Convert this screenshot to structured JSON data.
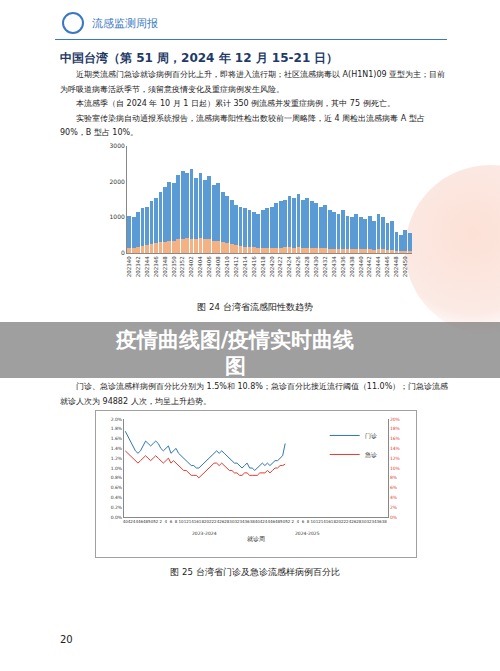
{
  "header": {
    "title": "流感监测周报"
  },
  "section_title": "中国台湾（第 51 周，2024 年 12 月 15-21 日）",
  "intro": [
    "近期类流感门急诊就诊病例百分比上升，即将进入流行期；社区流感病毒以 A(H1N1)09 亚型为主；目前为呼吸道病毒活跃季节，须留意疫情变化及重症病例发生风险。",
    "本流感季（自 2024 年 10 月 1 日起）累计 350 例流感并发重症病例，其中 75 例死亡。",
    "实验室传染病自动通报系统报告，流感病毒阳性检出数较前一周略降，近 4 周检出流感病毒 A 型占 90%，B 型占 10%。"
  ],
  "middle": "门诊、急诊流感样病例百分比分别为 1.5%和 10.8%；急诊百分比接近流行阈值（11.0%）；门急诊流感就诊人次为 94882 人次，均呈上升趋势。",
  "overlay": [
    "疫情曲线图/疫情实时曲线",
    "图"
  ],
  "page_number": 20,
  "chart_data": [
    {
      "type": "bar",
      "title": "图 24 台湾省流感阳性数趋势",
      "stacked": true,
      "grid": false,
      "categories": [
        "202340",
        null,
        "202342",
        null,
        "202344",
        null,
        "202346",
        null,
        "202348",
        null,
        "202350",
        null,
        "202352",
        null,
        "202402",
        null,
        "202404",
        null,
        "202406",
        null,
        "202408",
        null,
        "202410",
        null,
        "202412",
        null,
        "202414",
        null,
        "202416",
        null,
        "202418",
        null,
        "202420",
        null,
        "202422",
        null,
        "202424",
        null,
        "202426",
        null,
        "202428",
        null,
        "202430",
        null,
        "202432",
        null,
        "202434",
        null,
        "202436",
        null,
        "202438",
        null,
        "202440",
        null,
        "202442",
        null,
        "202444",
        null,
        "202446",
        null,
        "202448",
        null,
        "202450",
        null
      ],
      "series": [
        {
          "color": "#f4b183",
          "values": [
            150,
            150,
            180,
            200,
            220,
            250,
            280,
            300,
            320,
            350,
            330,
            380,
            400,
            420,
            380,
            400,
            420,
            380,
            400,
            350,
            330,
            300,
            270,
            250,
            220,
            200,
            180,
            170,
            160,
            150,
            150,
            140,
            140,
            150,
            150,
            160,
            160,
            150,
            160,
            150,
            150,
            140,
            140,
            130,
            130,
            120,
            120,
            110,
            120,
            110,
            100,
            110,
            100,
            100,
            110,
            90,
            110,
            100,
            90,
            90,
            70,
            60,
            70,
            60
          ]
        },
        {
          "color": "#5b9bd5",
          "values": [
            900,
            850,
            970,
            1050,
            1080,
            1200,
            1270,
            1400,
            1530,
            1650,
            1620,
            1820,
            1900,
            1830,
            1970,
            1700,
            1830,
            1670,
            1750,
            1550,
            1620,
            1400,
            1330,
            1250,
            1130,
            1100,
            1070,
            1030,
            990,
            950,
            1050,
            1110,
            1160,
            1250,
            1300,
            1340,
            1440,
            1400,
            1490,
            1350,
            1400,
            1310,
            1260,
            1170,
            1220,
            1080,
            1030,
            990,
            1080,
            940,
            900,
            990,
            900,
            850,
            940,
            810,
            990,
            900,
            760,
            810,
            530,
            440,
            580,
            490
          ]
        }
      ],
      "ylim": [
        0,
        3000
      ],
      "yticks": [
        0,
        1000,
        2000,
        3000
      ]
    },
    {
      "type": "line",
      "title": "图 25 台湾省门诊及急诊流感样病例百分比",
      "xlabel": "就诊周",
      "annotations": [
        "2023-2024",
        "2024-2025"
      ],
      "legend": "top right",
      "grid": false,
      "categories": [
        "40",
        null,
        "42",
        null,
        "44",
        null,
        "46",
        null,
        "48",
        null,
        "50",
        null,
        "52",
        null,
        "2",
        null,
        "4",
        null,
        "6",
        null,
        "8",
        null,
        "10",
        null,
        "12",
        null,
        "14",
        null,
        "16",
        null,
        "18",
        null,
        "20",
        null,
        "22",
        null,
        "24",
        null,
        "26",
        null,
        "28",
        null,
        "30",
        null,
        "32",
        null,
        "34",
        null,
        "36",
        null,
        "38",
        null,
        "40",
        null,
        "42",
        null,
        "44",
        null,
        "46",
        null,
        "48",
        null,
        "50",
        null,
        "52",
        null,
        "2",
        null,
        "4",
        null,
        "6",
        null,
        "8",
        null,
        "10",
        null,
        "12",
        null,
        "14",
        null,
        "16",
        null,
        "18",
        null,
        "20",
        null,
        "22",
        null,
        "24",
        null,
        "26",
        null,
        "28",
        null,
        "30",
        null,
        "32",
        null,
        "34",
        null,
        "36",
        null,
        "38",
        null
      ],
      "series": [
        {
          "name": "门诊",
          "color": "#2e75b6",
          "values": [
            1.75,
            1.65,
            1.55,
            1.45,
            1.35,
            1.3,
            1.35,
            1.45,
            1.55,
            1.5,
            1.45,
            1.5,
            1.55,
            1.5,
            1.4,
            1.35,
            1.4,
            1.45,
            1.3,
            1.35,
            1.4,
            1.3,
            1.25,
            1.2,
            1.15,
            1.1,
            1.05,
            1.05,
            1.0,
            1.0,
            1.05,
            1.1,
            1.15,
            1.2,
            1.25,
            1.3,
            1.35,
            1.3,
            1.35,
            1.3,
            1.25,
            1.2,
            1.15,
            1.1,
            1.1,
            1.05,
            1.0,
            1.05,
            1.1,
            1.0,
            1.0,
            0.95,
            1.0,
            1.05,
            1.1,
            1.05,
            1.1,
            1.05,
            1.1,
            1.15,
            1.15,
            1.2,
            1.25,
            1.5,
            null,
            null,
            null,
            null,
            null,
            null,
            null,
            null,
            null,
            null,
            null,
            null,
            null,
            null,
            null,
            null,
            null,
            null,
            null,
            null,
            null,
            null,
            null,
            null,
            null,
            null,
            null,
            null,
            null,
            null,
            null,
            null,
            null,
            null,
            null,
            null,
            null,
            null,
            null,
            null
          ]
        },
        {
          "name": "急诊",
          "color": "#e03c31",
          "axis": "y2",
          "values": [
            13.5,
            13.0,
            12.5,
            12.0,
            11.5,
            11.0,
            11.5,
            12.0,
            12.5,
            12.0,
            11.5,
            12.0,
            12.5,
            12.0,
            11.5,
            11.0,
            11.5,
            12.0,
            11.0,
            11.5,
            11.0,
            10.5,
            10.0,
            9.5,
            9.5,
            9.0,
            8.5,
            8.5,
            8.5,
            8.0,
            8.5,
            9.0,
            9.5,
            10.0,
            10.5,
            11.0,
            11.0,
            10.5,
            11.0,
            10.5,
            10.0,
            9.5,
            9.5,
            9.0,
            9.0,
            8.5,
            8.5,
            9.0,
            9.0,
            8.5,
            8.5,
            8.5,
            8.5,
            9.0,
            9.0,
            9.0,
            9.5,
            9.0,
            9.5,
            10.0,
            10.0,
            10.5,
            10.5,
            10.8,
            null,
            null,
            null,
            null,
            null,
            null,
            null,
            null,
            null,
            null,
            null,
            null,
            null,
            null,
            null,
            null,
            null,
            null,
            null,
            null,
            null,
            null,
            null,
            null,
            null,
            null,
            null,
            null,
            null,
            null,
            null,
            null,
            null,
            null,
            null,
            null,
            null,
            null,
            null,
            null
          ]
        }
      ],
      "ylim": [
        0,
        2
      ],
      "yticks": [
        {
          "value": 0,
          "label": "0.0%"
        },
        {
          "value": 0.2,
          "label": "0.2%"
        },
        {
          "value": 0.4,
          "label": "0.4%"
        },
        {
          "value": 0.6,
          "label": "0.6%"
        },
        {
          "value": 0.8,
          "label": "0.8%"
        },
        {
          "value": 1.0,
          "label": "1.0%"
        },
        {
          "value": 1.2,
          "label": "1.2%"
        },
        {
          "value": 1.4,
          "label": "1.4%"
        },
        {
          "value": 1.6,
          "label": "1.6%"
        },
        {
          "value": 1.8,
          "label": "1.8%"
        },
        {
          "value": 2.0,
          "label": "2.0%"
        }
      ],
      "y2lim": [
        0,
        20
      ],
      "y2ticks": [
        {
          "value": 0,
          "label": "0%"
        },
        {
          "value": 2,
          "label": "2%"
        },
        {
          "value": 4,
          "label": "4%"
        },
        {
          "value": 6,
          "label": "6%"
        },
        {
          "value": 8,
          "label": "8%"
        },
        {
          "value": 10,
          "label": "10%"
        },
        {
          "value": 12,
          "label": "12%"
        },
        {
          "value": 14,
          "label": "14%"
        },
        {
          "value": 16,
          "label": "16%"
        },
        {
          "value": 18,
          "label": "18%"
        },
        {
          "value": 20,
          "label": "20%"
        }
      ]
    }
  ]
}
